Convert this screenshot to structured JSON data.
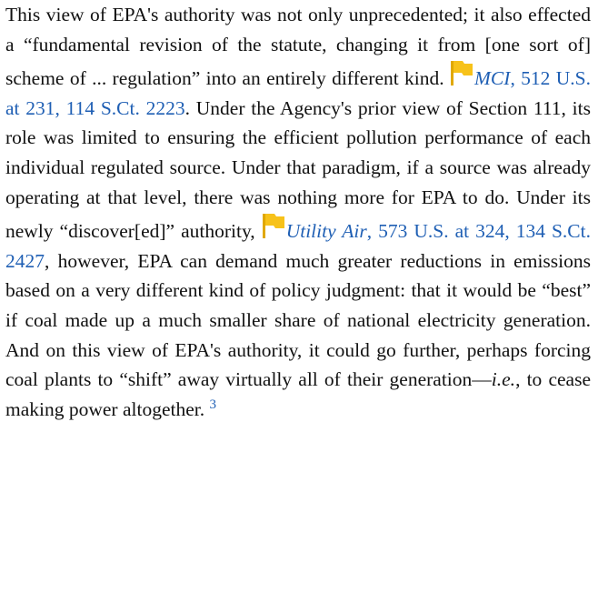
{
  "paragraph": [
    "This view of EPA's authority was not only unprecedented; it also effected a “fundamental revision of the statute, changing it from [one sort of] scheme of ... regulation” into an entirely different kind. ",
    "MCI",
    ", 512 U.S. at 231, 114 S.Ct. 2223",
    ". Under the Agency's prior view of Section 111, its role was limited to ensuring the efficient pollution performance of each individual regulated source. Under that paradigm, if a source was already operating at that level, there was nothing more for EPA to do. Under its newly “discover[ed]” authority, ",
    "Utility Air",
    ", 573 U.S. at 324, 134 S.Ct. 2427",
    ", however, EPA can demand much greater reductions in emissions based on a very different kind of policy judgment: that it would be “best” if coal made up a much smaller share of national electricity generation. And on this view of EPA's authority, it could go further, perhaps forcing coal plants to “shift” away virtually all of their generation—",
    "i.e.",
    ", to cease making power altogether. ",
    "3"
  ]
}
